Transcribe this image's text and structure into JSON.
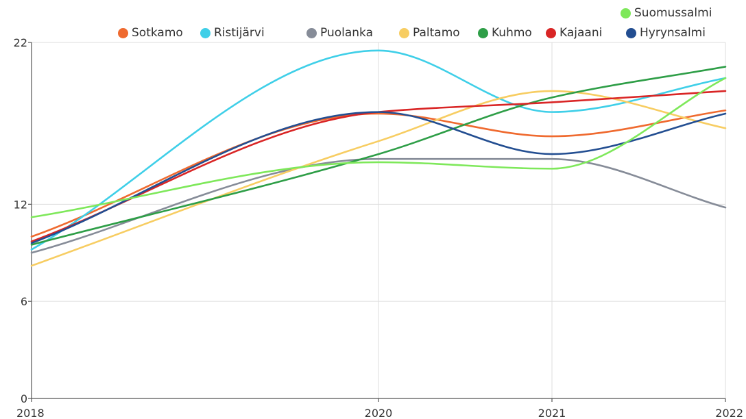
{
  "chart_data": {
    "type": "line",
    "title": "",
    "xlabel": "",
    "ylabel": "",
    "x": [
      2018,
      2020,
      2021,
      2022
    ],
    "x_tick_labels": [
      "2018",
      "2020",
      "2021",
      "2022"
    ],
    "y_ticks": [
      0,
      6,
      12,
      22
    ],
    "y_tick_labels": [
      "0",
      "6",
      "12",
      "22"
    ],
    "ylim": [
      0,
      22
    ],
    "grid": true,
    "legend_position": "top-right",
    "series": [
      {
        "name": "Sotkamo",
        "color": "#ef6a2f",
        "values": [
          10,
          17.6,
          16.2,
          17.8
        ]
      },
      {
        "name": "Ristijärvi",
        "color": "#3fcfe8",
        "values": [
          9.2,
          21.5,
          17.7,
          19.8
        ]
      },
      {
        "name": "Puolanka",
        "color": "#868c98",
        "values": [
          9.0,
          14.8,
          14.8,
          11.8
        ]
      },
      {
        "name": "Paltamo",
        "color": "#f7cd62",
        "values": [
          8.2,
          15.9,
          19.0,
          16.7
        ]
      },
      {
        "name": "Kuhmo",
        "color": "#2e9e47",
        "values": [
          9.5,
          15.1,
          18.6,
          20.5
        ]
      },
      {
        "name": "Kajaani",
        "color": "#d92525",
        "values": [
          9.7,
          17.7,
          18.3,
          19.0
        ]
      },
      {
        "name": "Hyrynsalmi",
        "color": "#234e91",
        "values": [
          9.6,
          17.7,
          15.1,
          17.6
        ]
      },
      {
        "name": "Suomussalmi",
        "color": "#7ee85a",
        "values": [
          11.2,
          14.6,
          14.2,
          19.8
        ]
      }
    ]
  }
}
